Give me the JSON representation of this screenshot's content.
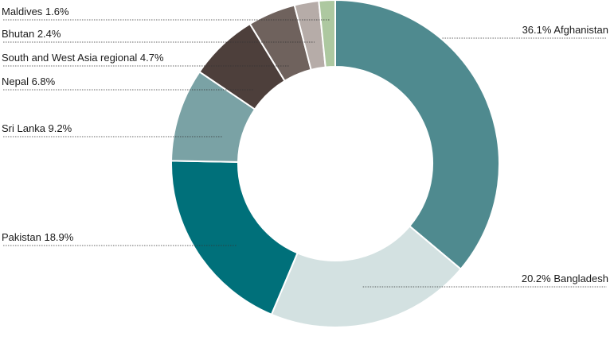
{
  "chart_data": {
    "type": "pie",
    "donut": true,
    "slices": [
      {
        "name": "Afghanistan",
        "value": 36.1,
        "label": "36.1% Afghanistan",
        "color": "#4f8a8f",
        "side": "right"
      },
      {
        "name": "Bangladesh",
        "value": 20.2,
        "label": "20.2% Bangladesh",
        "color": "#d3e1e1",
        "side": "right"
      },
      {
        "name": "Pakistan",
        "value": 18.9,
        "label": "Pakistan 18.9%",
        "color": "#00707a",
        "side": "left"
      },
      {
        "name": "Sri Lanka",
        "value": 9.2,
        "label": "Sri Lanka 9.2%",
        "color": "#7aa2a5",
        "side": "left"
      },
      {
        "name": "Nepal",
        "value": 6.8,
        "label": "Nepal 6.8%",
        "color": "#4d3f3b",
        "side": "left"
      },
      {
        "name": "South and West Asia regional",
        "value": 4.7,
        "label": "South and West Asia regional 4.7%",
        "color": "#6f625d",
        "side": "left"
      },
      {
        "name": "Bhutan",
        "value": 2.4,
        "label": "Bhutan 2.4%",
        "color": "#b6aca8",
        "side": "left"
      },
      {
        "name": "Maldives",
        "value": 1.6,
        "label": "Maldives 1.6%",
        "color": "#adc8a0",
        "side": "left"
      }
    ]
  }
}
